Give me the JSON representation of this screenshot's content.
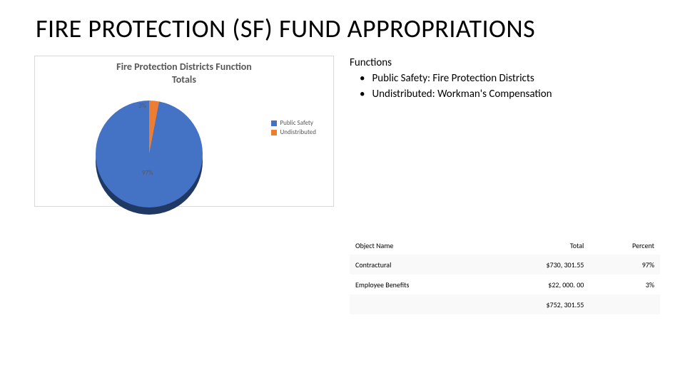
{
  "title": "FIRE PROTECTION (SF) FUND APPROPRIATIONS",
  "chart": {
    "title_line1": "Fire Protection Districts Function",
    "title_line2": "Totals",
    "type": "pie",
    "slices": [
      {
        "label": "Public Safety",
        "value": 97,
        "pct_label": "97%",
        "color": "#4472c4"
      },
      {
        "label": "Undistributed",
        "value": 3,
        "pct_label": "3%",
        "color": "#ed7d31"
      }
    ],
    "depth_color": "#203864",
    "background_color": "#ffffff",
    "border_color": "#d9d9d9",
    "label_fontsize": 9,
    "title_fontsize": 14,
    "title_color": "#595959",
    "legend_position": "right"
  },
  "functions": {
    "heading": "Functions",
    "items": [
      "Public Safety: Fire Protection Districts",
      "Undistributed: Workman's Compensation"
    ]
  },
  "table": {
    "columns": [
      "Object Name",
      "Total",
      "Percent"
    ],
    "rows": [
      {
        "name": "Contractural",
        "total": "$730, 301.55",
        "percent": "97%"
      },
      {
        "name": "Employee Benefits",
        "total": "$22, 000. 00",
        "percent": "3%"
      }
    ],
    "grand_total": "$752, 301.55",
    "header_bg": "#ffffff",
    "row_alt_bg": "#f9f9f9",
    "fontsize": 10
  }
}
